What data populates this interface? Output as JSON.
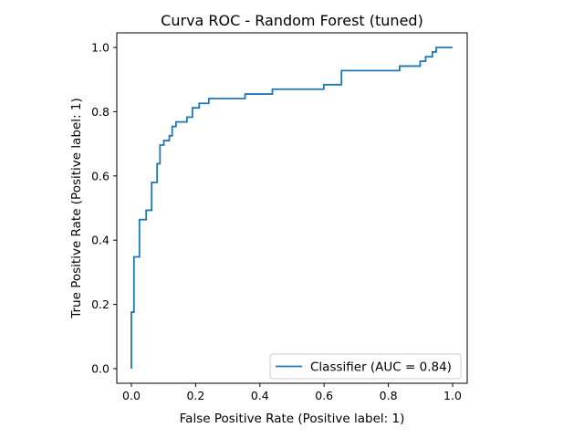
{
  "chart_data": {
    "type": "line",
    "title": "Curva ROC - Random Forest (tuned)",
    "xlabel": "False Positive Rate (Positive label: 1)",
    "ylabel": "True Positive Rate (Positive label: 1)",
    "xlim": [
      0.0,
      1.0
    ],
    "ylim": [
      0.0,
      1.0
    ],
    "xticks": [
      "0.0",
      "0.2",
      "0.4",
      "0.6",
      "0.8",
      "1.0"
    ],
    "yticks": [
      "0.0",
      "0.2",
      "0.4",
      "0.6",
      "0.8",
      "1.0"
    ],
    "grid": false,
    "legend_position": "lower-right",
    "series": [
      {
        "name": "Classifier (AUC = 0.84)",
        "color": "#1f77b4",
        "drawstyle": "steps-post",
        "x": [
          0.0,
          0.0,
          0.008,
          0.008,
          0.025,
          0.025,
          0.046,
          0.046,
          0.063,
          0.063,
          0.08,
          0.08,
          0.089,
          0.089,
          0.101,
          0.101,
          0.118,
          0.118,
          0.127,
          0.127,
          0.139,
          0.139,
          0.173,
          0.173,
          0.19,
          0.19,
          0.211,
          0.211,
          0.241,
          0.241,
          0.354,
          0.354,
          0.439,
          0.439,
          0.599,
          0.599,
          0.654,
          0.654,
          0.835,
          0.835,
          0.899,
          0.899,
          0.916,
          0.916,
          0.937,
          0.937,
          0.949,
          0.949,
          1.0
        ],
        "y": [
          0.0,
          0.176,
          0.176,
          0.348,
          0.348,
          0.464,
          0.464,
          0.493,
          0.493,
          0.58,
          0.58,
          0.638,
          0.638,
          0.696,
          0.696,
          0.71,
          0.71,
          0.725,
          0.725,
          0.754,
          0.754,
          0.768,
          0.768,
          0.783,
          0.783,
          0.812,
          0.812,
          0.826,
          0.826,
          0.841,
          0.841,
          0.855,
          0.855,
          0.87,
          0.87,
          0.884,
          0.884,
          0.928,
          0.928,
          0.942,
          0.942,
          0.957,
          0.957,
          0.971,
          0.971,
          0.986,
          0.986,
          1.0,
          1.0
        ]
      }
    ]
  }
}
